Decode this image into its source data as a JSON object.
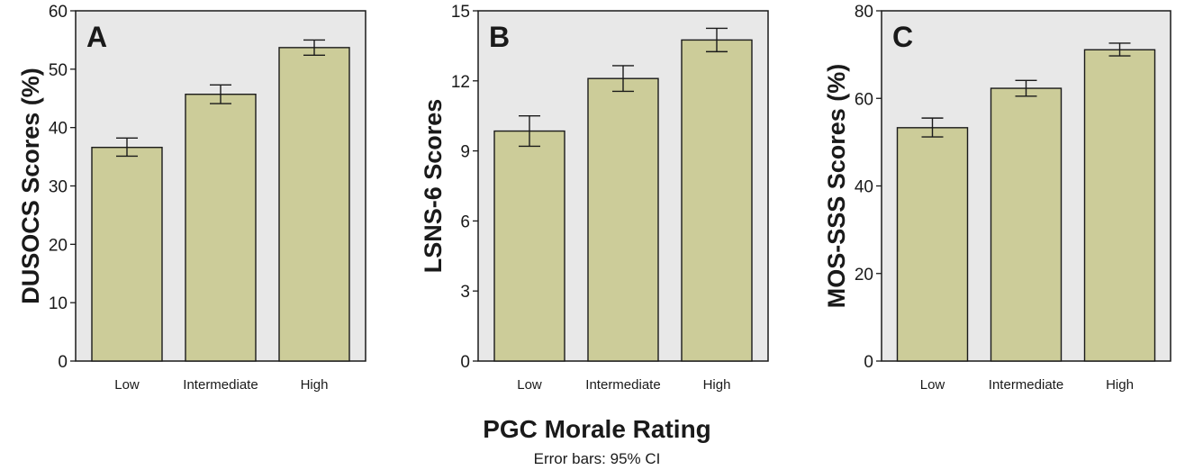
{
  "figure": {
    "shared_xlabel": "PGC Morale Rating",
    "error_note": "Error bars: 95% CI"
  },
  "chart_data": [
    {
      "type": "bar",
      "panel_letter": "A",
      "categories": [
        "Low",
        "Intermediate",
        "High"
      ],
      "values": [
        36.6,
        45.7,
        53.7
      ],
      "error_low": [
        35.1,
        44.1,
        52.4
      ],
      "error_high": [
        38.2,
        47.3,
        55.0
      ],
      "ylabel": "DUSOCS Scores (%)",
      "ylim": [
        0,
        60
      ],
      "yticks": [
        0,
        10,
        20,
        30,
        40,
        50,
        60
      ],
      "bar_color": "#cccc99",
      "plot_bg": "#e8e8e8"
    },
    {
      "type": "bar",
      "panel_letter": "B",
      "categories": [
        "Low",
        "Intermediate",
        "High"
      ],
      "values": [
        9.85,
        12.1,
        13.75
      ],
      "error_low": [
        9.2,
        11.55,
        13.25
      ],
      "error_high": [
        10.5,
        12.65,
        14.25
      ],
      "ylabel": "LSNS-6 Scores",
      "ylim": [
        0,
        15
      ],
      "yticks": [
        0,
        3,
        6,
        9,
        12,
        15
      ],
      "bar_color": "#cccc99",
      "plot_bg": "#e8e8e8"
    },
    {
      "type": "bar",
      "panel_letter": "C",
      "categories": [
        "Low",
        "Intermediate",
        "High"
      ],
      "values": [
        53.3,
        62.3,
        71.1
      ],
      "error_low": [
        51.2,
        60.5,
        69.7
      ],
      "error_high": [
        55.5,
        64.1,
        72.6
      ],
      "ylabel": "MOS-SSS Scores (%)",
      "ylim": [
        0,
        80
      ],
      "yticks": [
        0,
        20,
        40,
        60,
        80
      ],
      "bar_color": "#cccc99",
      "plot_bg": "#e8e8e8"
    }
  ]
}
